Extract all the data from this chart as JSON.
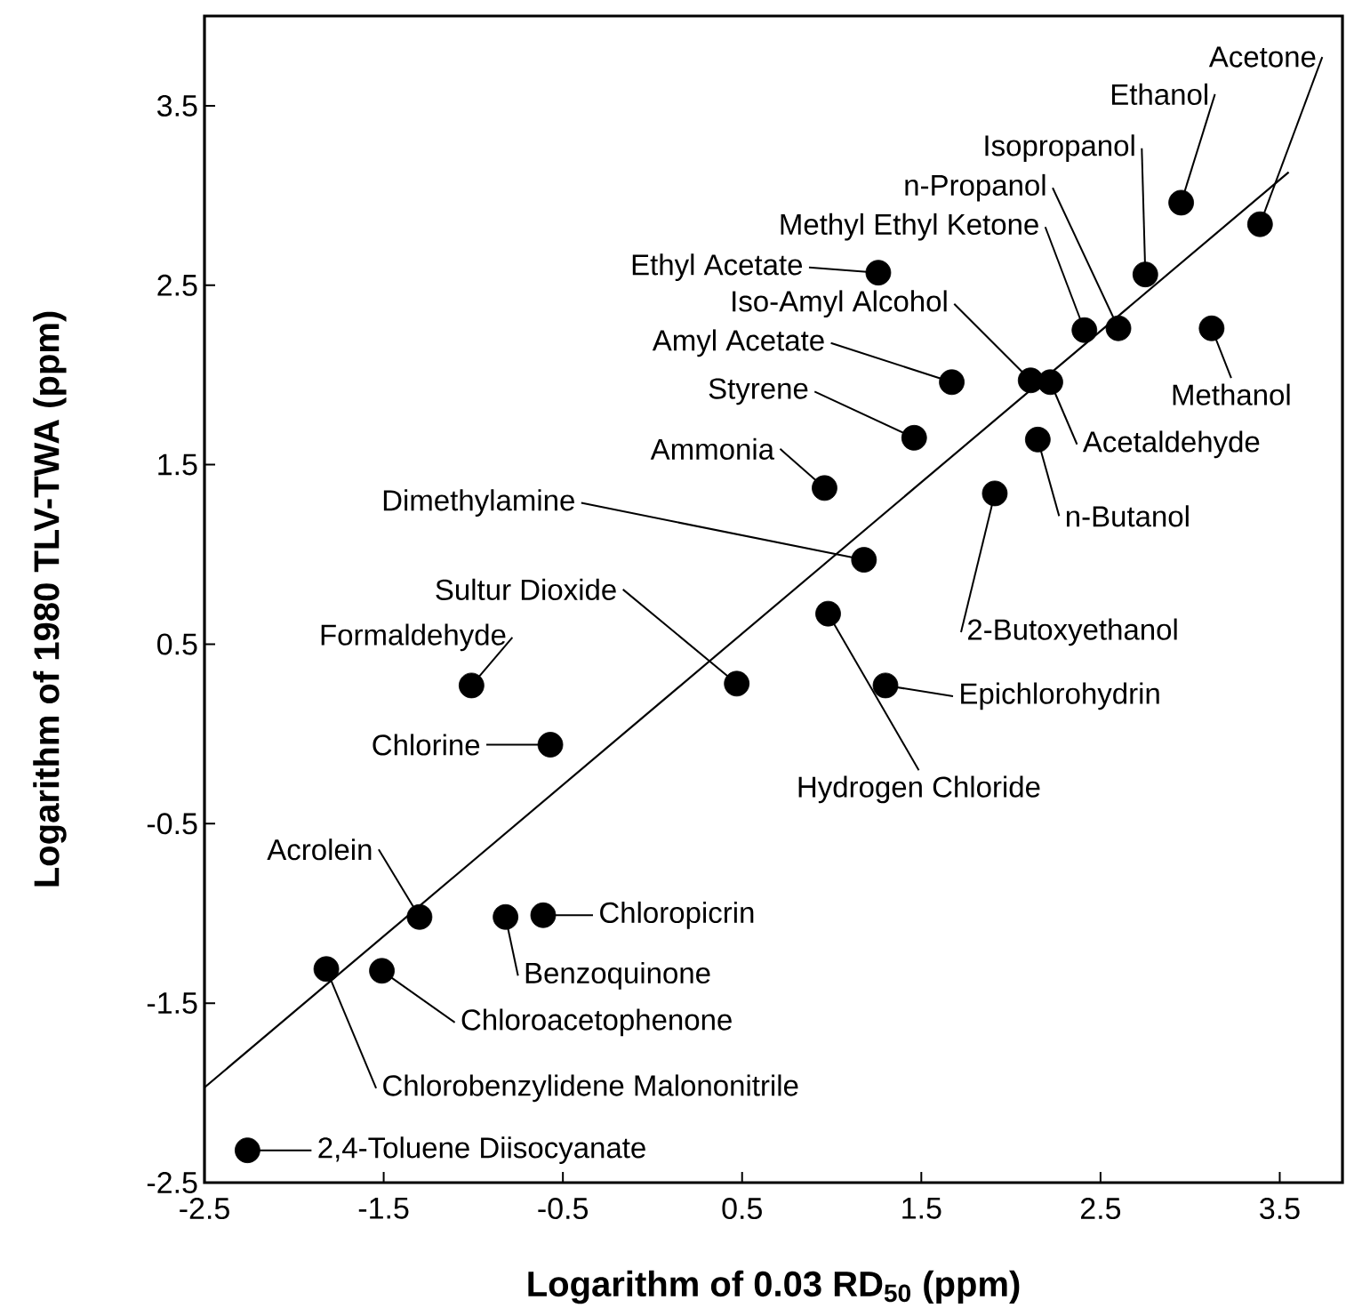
{
  "chart_data": {
    "type": "scatter",
    "xlabel": "Logarithm of 0.03 RD$_{50}$ (ppm)",
    "ylabel": "Logarithm of 1980 TLV-TWA (ppm)",
    "xlim": [
      -2.5,
      3.85
    ],
    "ylim": [
      -2.5,
      4.0
    ],
    "xticks": [
      -2.5,
      -1.5,
      -0.5,
      0.5,
      1.5,
      2.5,
      3.5
    ],
    "yticks": [
      -2.5,
      -1.5,
      -0.5,
      0.5,
      1.5,
      2.5,
      3.5
    ],
    "grid": false,
    "series": [
      {
        "marker": "circle",
        "color": "#000000",
        "x": [
          -2.26,
          -1.82,
          -1.51,
          -1.3,
          -0.82,
          -0.61,
          -0.57,
          -1.01,
          0.47,
          0.98,
          1.3,
          1.18,
          0.96,
          1.91,
          2.15,
          1.46,
          1.67,
          2.11,
          2.22,
          1.26,
          2.41,
          2.6,
          2.75,
          2.95,
          3.39,
          3.12
        ],
        "values": [
          -2.32,
          -1.31,
          -1.32,
          -1.02,
          -1.02,
          -1.01,
          -0.06,
          0.27,
          0.28,
          0.67,
          0.27,
          0.97,
          1.37,
          1.34,
          1.64,
          1.65,
          1.96,
          1.97,
          1.96,
          2.57,
          2.25,
          2.26,
          2.56,
          2.96,
          2.84,
          2.26
        ]
      },
      {
        "type": "line",
        "color": "#000000",
        "x": [
          -2.5,
          3.55
        ],
        "values": [
          -1.97,
          3.13
        ]
      }
    ],
    "annotations": [
      {
        "text": "2,4-Toluene Diisocyanate",
        "x": -2.26,
        "y": -2.32
      },
      {
        "text": "Chlorobenzylidene Malononitrile",
        "x": -1.82,
        "y": -1.31
      },
      {
        "text": "Chloroacetophenone",
        "x": -1.51,
        "y": -1.32
      },
      {
        "text": "Acrolein",
        "x": -1.3,
        "y": -1.02
      },
      {
        "text": "Benzoquinone",
        "x": -0.82,
        "y": -1.02
      },
      {
        "text": "Chloropicrin",
        "x": -0.61,
        "y": -1.01
      },
      {
        "text": "Chlorine",
        "x": -0.57,
        "y": -0.06
      },
      {
        "text": "Formaldehyde",
        "x": -1.01,
        "y": 0.27
      },
      {
        "text": "Sultur Dioxide",
        "x": 0.47,
        "y": 0.28
      },
      {
        "text": "Hydrogen Chloride",
        "x": 0.98,
        "y": 0.67
      },
      {
        "text": "Epichlorohydrin",
        "x": 1.3,
        "y": 0.27
      },
      {
        "text": "Dimethylamine",
        "x": 1.18,
        "y": 0.97
      },
      {
        "text": "Ammonia",
        "x": 0.96,
        "y": 1.37
      },
      {
        "text": "2-Butoxyethanol",
        "x": 1.91,
        "y": 1.34
      },
      {
        "text": "n-Butanol",
        "x": 2.15,
        "y": 1.64
      },
      {
        "text": "Styrene",
        "x": 1.46,
        "y": 1.65
      },
      {
        "text": "Amyl Acetate",
        "x": 1.67,
        "y": 1.96
      },
      {
        "text": "Iso-Amyl Alcohol",
        "x": 2.11,
        "y": 1.97
      },
      {
        "text": "Acetaldehyde",
        "x": 2.22,
        "y": 1.96
      },
      {
        "text": "Ethyl Acetate",
        "x": 1.26,
        "y": 2.57
      },
      {
        "text": "Methyl Ethyl Ketone",
        "x": 2.41,
        "y": 2.25
      },
      {
        "text": "n-Propanol",
        "x": 2.6,
        "y": 2.26
      },
      {
        "text": "Isopropanol",
        "x": 2.75,
        "y": 2.56
      },
      {
        "text": "Ethanol",
        "x": 2.95,
        "y": 2.96
      },
      {
        "text": "Acetone",
        "x": 3.39,
        "y": 2.84
      },
      {
        "text": "Methanol",
        "x": 3.12,
        "y": 2.26
      }
    ]
  }
}
